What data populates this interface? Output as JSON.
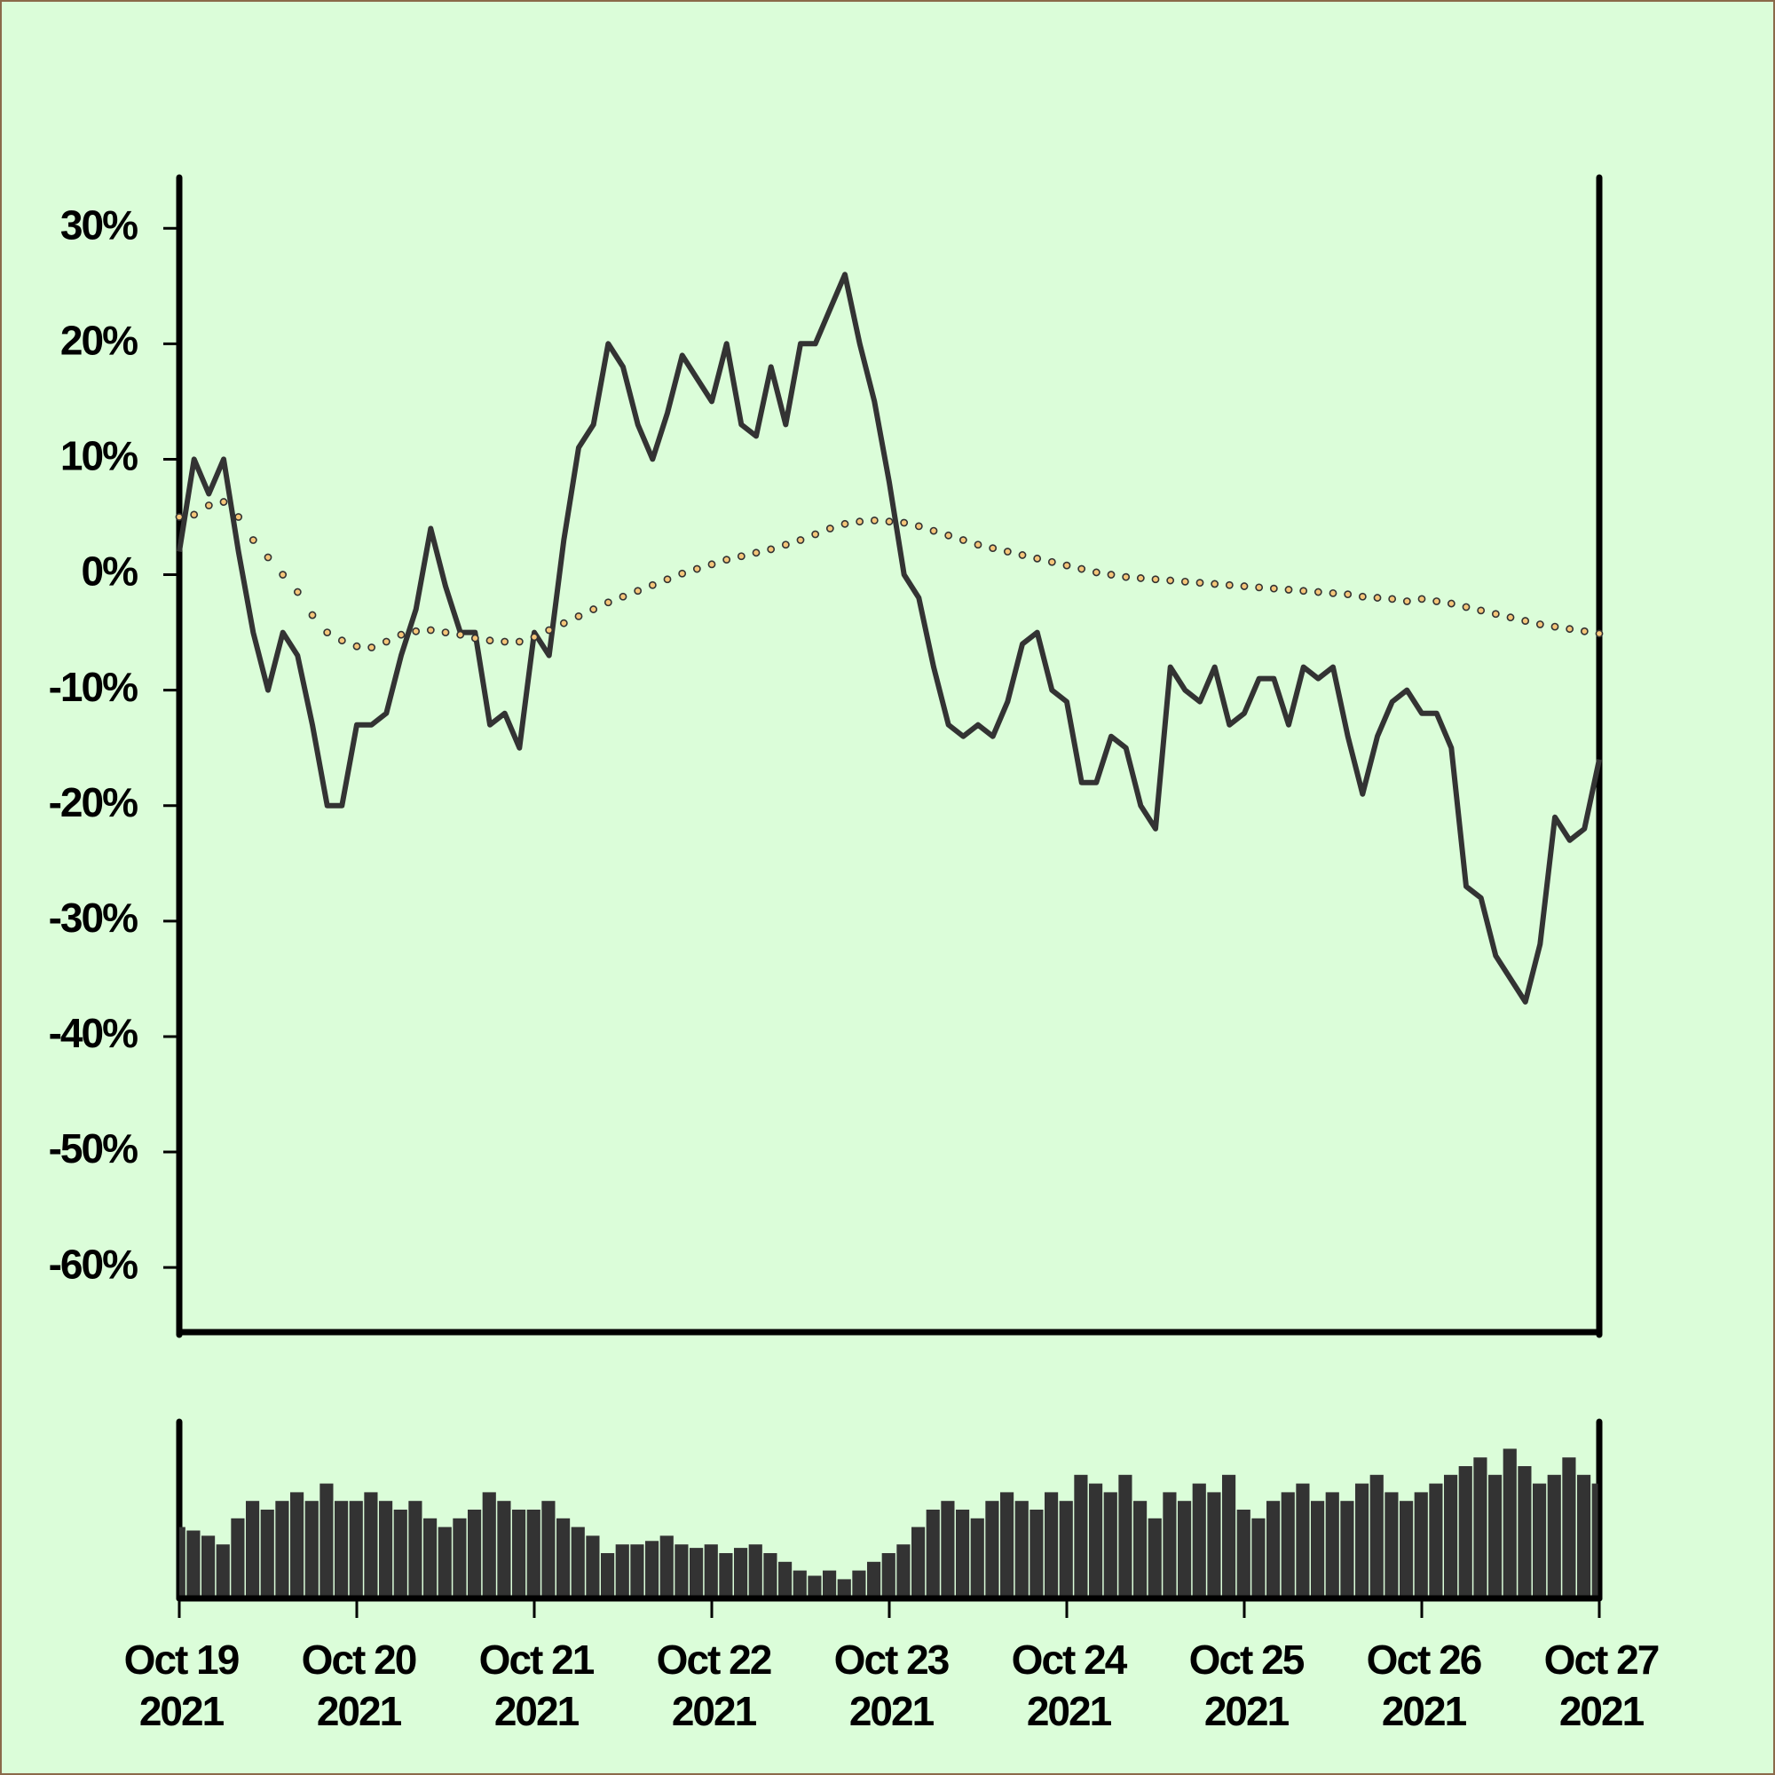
{
  "chart_data": [
    {
      "type": "line",
      "x": [
        0,
        2,
        4,
        6,
        8,
        10,
        12,
        14,
        16,
        18,
        20,
        22,
        24,
        26,
        28,
        30,
        32,
        34,
        36,
        38,
        40,
        42,
        44,
        46,
        48,
        50,
        52,
        54,
        56,
        58,
        60,
        62,
        64,
        66,
        68,
        70,
        72,
        74,
        76,
        78,
        80,
        82,
        84,
        86,
        88,
        90,
        92,
        94,
        96,
        98,
        100,
        102,
        104,
        106,
        108,
        110,
        112,
        114,
        116,
        118,
        120,
        122,
        124,
        126,
        128,
        130,
        132,
        134,
        136,
        138,
        140,
        142,
        144,
        146,
        148,
        150,
        152,
        154,
        156,
        158,
        160,
        162,
        164,
        166,
        168,
        170,
        172,
        174,
        176,
        178,
        180,
        182,
        184,
        186,
        188,
        190,
        192
      ],
      "series": [
        {
          "color": "#333333",
          "style": "line",
          "values": [
            2,
            10,
            7,
            10,
            2,
            -5,
            -10,
            -5,
            -7,
            -13,
            -20,
            -20,
            -13,
            -13,
            -12,
            -7,
            -3,
            4,
            -1,
            -5,
            -5,
            -13,
            -12,
            -15,
            -5,
            -7,
            3,
            11,
            13,
            20,
            18,
            13,
            10,
            14,
            19,
            17,
            15,
            20,
            13,
            12,
            18,
            13,
            20,
            20,
            23,
            26,
            20,
            15,
            8,
            0,
            -2,
            -8,
            -13,
            -14,
            -13,
            -14,
            -11,
            -6,
            -5,
            -10,
            -11,
            -18,
            -18,
            -14,
            -15,
            -20,
            -22,
            -8,
            -10,
            -11,
            -8,
            -13,
            -12,
            -9,
            -9,
            -13,
            -8,
            -9,
            -8,
            -14,
            -19,
            -14,
            -11,
            -10,
            -12,
            -12,
            -15,
            -27,
            -28,
            -33,
            -35,
            -37,
            -32,
            -21,
            -23,
            -22,
            -16
          ]
        },
        {
          "color": "#f5c67a",
          "style": "markers",
          "values": [
            5,
            5.2,
            6,
            6.3,
            5,
            3,
            1.5,
            0,
            -1.5,
            -3.5,
            -5,
            -5.7,
            -6.2,
            -6.3,
            -5.8,
            -5.2,
            -4.9,
            -4.8,
            -5,
            -5.2,
            -5.5,
            -5.7,
            -5.8,
            -5.8,
            -5.4,
            -4.8,
            -4.2,
            -3.6,
            -3,
            -2.4,
            -1.9,
            -1.4,
            -0.9,
            -0.4,
            0.1,
            0.5,
            0.9,
            1.3,
            1.6,
            1.9,
            2.2,
            2.6,
            3,
            3.5,
            4,
            4.4,
            4.6,
            4.7,
            4.6,
            4.5,
            4.2,
            3.8,
            3.4,
            3,
            2.6,
            2.3,
            2,
            1.7,
            1.4,
            1.1,
            0.8,
            0.5,
            0.2,
            0,
            -0.2,
            -0.3,
            -0.4,
            -0.5,
            -0.6,
            -0.7,
            -0.8,
            -0.9,
            -1,
            -1.1,
            -1.2,
            -1.3,
            -1.4,
            -1.5,
            -1.6,
            -1.7,
            -1.9,
            -2,
            -2.1,
            -2.3,
            -2.1,
            -2.3,
            -2.5,
            -2.8,
            -3.1,
            -3.4,
            -3.7,
            -4,
            -4.3,
            -4.5,
            -4.7,
            -4.9,
            -5.1
          ]
        }
      ],
      "xlim": [
        0,
        192
      ],
      "ylim": [
        -65.6,
        34.4
      ],
      "yticks": [
        {
          "value": 30,
          "label": "30%"
        },
        {
          "value": 20,
          "label": "20%"
        },
        {
          "value": 10,
          "label": "10%"
        },
        {
          "value": 0,
          "label": "0%"
        },
        {
          "value": -10,
          "label": "-10%"
        },
        {
          "value": -20,
          "label": "-20%"
        },
        {
          "value": -30,
          "label": "-30%"
        },
        {
          "value": -40,
          "label": "-40%"
        },
        {
          "value": -50,
          "label": "-50%"
        },
        {
          "value": -60,
          "label": "-60%"
        }
      ]
    },
    {
      "type": "bar",
      "x": [
        0,
        2,
        4,
        6,
        8,
        10,
        12,
        14,
        16,
        18,
        20,
        22,
        24,
        26,
        28,
        30,
        32,
        34,
        36,
        38,
        40,
        42,
        44,
        46,
        48,
        50,
        52,
        54,
        56,
        58,
        60,
        62,
        64,
        66,
        68,
        70,
        72,
        74,
        76,
        78,
        80,
        82,
        84,
        86,
        88,
        90,
        92,
        94,
        96,
        98,
        100,
        102,
        104,
        106,
        108,
        110,
        112,
        114,
        116,
        118,
        120,
        122,
        124,
        126,
        128,
        130,
        132,
        134,
        136,
        138,
        140,
        142,
        144,
        146,
        148,
        150,
        152,
        154,
        156,
        158,
        160,
        162,
        164,
        166,
        168,
        170,
        172,
        174,
        176,
        178,
        180,
        182,
        184,
        186,
        188,
        190,
        192
      ],
      "values": [
        40,
        38,
        35,
        30,
        45,
        55,
        50,
        55,
        60,
        55,
        65,
        55,
        55,
        60,
        55,
        50,
        55,
        45,
        40,
        45,
        50,
        60,
        55,
        50,
        50,
        55,
        45,
        40,
        35,
        25,
        30,
        30,
        32,
        35,
        30,
        28,
        30,
        25,
        28,
        30,
        25,
        20,
        15,
        12,
        15,
        10,
        15,
        20,
        25,
        30,
        40,
        50,
        55,
        50,
        45,
        55,
        60,
        55,
        50,
        60,
        55,
        70,
        65,
        60,
        70,
        55,
        45,
        60,
        55,
        65,
        60,
        70,
        50,
        45,
        55,
        60,
        65,
        55,
        60,
        55,
        65,
        70,
        60,
        55,
        60,
        65,
        70,
        75,
        80,
        70,
        85,
        75,
        65,
        70,
        80,
        70,
        65
      ],
      "color": "#333333",
      "xlim": [
        0,
        192
      ],
      "ylim": [
        0,
        100
      ],
      "xticks": [
        {
          "value": 0,
          "label": "Oct 19\n2021"
        },
        {
          "value": 24,
          "label": "Oct 20\n2021"
        },
        {
          "value": 48,
          "label": "Oct 21\n2021"
        },
        {
          "value": 72,
          "label": "Oct 22\n2021"
        },
        {
          "value": 96,
          "label": "Oct 23\n2021"
        },
        {
          "value": 120,
          "label": "Oct 24\n2021"
        },
        {
          "value": 144,
          "label": "Oct 25\n2021"
        },
        {
          "value": 168,
          "label": "Oct 26\n2021"
        },
        {
          "value": 192,
          "label": "Oct 27\n2021"
        }
      ]
    }
  ]
}
